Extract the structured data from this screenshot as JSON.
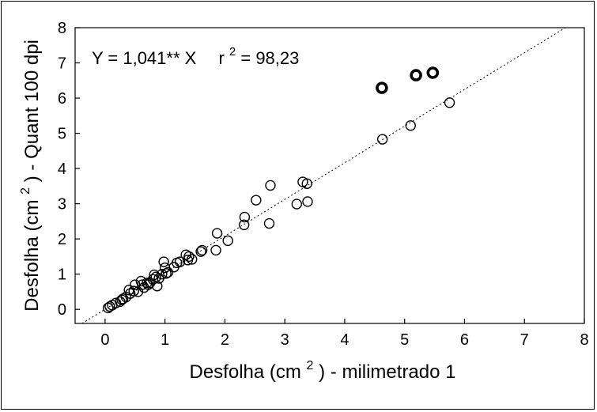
{
  "chart_data": {
    "type": "scatter",
    "annotation": {
      "equation": "Y = 1,041** X",
      "r2_prefix": "r",
      "r2_exponent": "2",
      "r2_value": " = 98,23"
    },
    "xlabel": {
      "prefix": "Desfolha (cm",
      "superscript": "2",
      "suffix": ") - milimetrado 1"
    },
    "ylabel": {
      "prefix": "Desfolha (cm",
      "superscript": "2",
      "suffix": ") - Quant 100 dpi"
    },
    "xlim": [
      -0.5,
      8
    ],
    "ylim": [
      -0.4,
      8
    ],
    "x_ticks": [
      "0",
      "1",
      "2",
      "3",
      "4",
      "5",
      "6",
      "7",
      "8"
    ],
    "y_ticks": [
      "0",
      "1",
      "2",
      "3",
      "4",
      "5",
      "6",
      "7",
      "8"
    ],
    "reference_line": {
      "slope": 1.041,
      "intercept": 0,
      "style": "dotted"
    },
    "grid": false,
    "series": [
      {
        "marker": "open-circle",
        "points": [
          [
            0.05,
            0.04
          ],
          [
            0.08,
            0.08
          ],
          [
            0.12,
            0.12
          ],
          [
            0.18,
            0.18
          ],
          [
            0.25,
            0.22
          ],
          [
            0.28,
            0.27
          ],
          [
            0.3,
            0.3
          ],
          [
            0.35,
            0.35
          ],
          [
            0.4,
            0.55
          ],
          [
            0.42,
            0.45
          ],
          [
            0.48,
            0.52
          ],
          [
            0.5,
            0.7
          ],
          [
            0.55,
            0.5
          ],
          [
            0.6,
            0.8
          ],
          [
            0.62,
            0.7
          ],
          [
            0.65,
            0.62
          ],
          [
            0.7,
            0.75
          ],
          [
            0.72,
            0.7
          ],
          [
            0.75,
            0.75
          ],
          [
            0.8,
            0.85
          ],
          [
            0.82,
            0.98
          ],
          [
            0.85,
            0.92
          ],
          [
            0.87,
            0.66
          ],
          [
            0.9,
            0.88
          ],
          [
            0.95,
            1.0
          ],
          [
            0.98,
            1.35
          ],
          [
            1.0,
            1.18
          ],
          [
            1.02,
            1.02
          ],
          [
            1.05,
            1.05
          ],
          [
            1.15,
            1.2
          ],
          [
            1.2,
            1.32
          ],
          [
            1.25,
            1.35
          ],
          [
            1.35,
            1.55
          ],
          [
            1.38,
            1.4
          ],
          [
            1.4,
            1.5
          ],
          [
            1.45,
            1.42
          ],
          [
            1.6,
            1.64
          ],
          [
            1.62,
            1.68
          ],
          [
            1.85,
            1.68
          ],
          [
            1.87,
            2.16
          ],
          [
            2.05,
            1.95
          ],
          [
            2.32,
            2.4
          ],
          [
            2.33,
            2.62
          ],
          [
            2.52,
            3.1
          ],
          [
            2.74,
            2.44
          ],
          [
            2.76,
            3.52
          ],
          [
            3.2,
            2.99
          ],
          [
            3.3,
            3.62
          ],
          [
            3.37,
            3.57
          ],
          [
            3.38,
            3.06
          ],
          [
            4.63,
            4.83
          ],
          [
            5.1,
            5.22
          ],
          [
            5.75,
            5.87
          ]
        ]
      },
      {
        "marker": "bold-open-circle",
        "points": [
          [
            4.62,
            6.29
          ],
          [
            5.19,
            6.65
          ],
          [
            5.47,
            6.72
          ]
        ]
      }
    ]
  }
}
